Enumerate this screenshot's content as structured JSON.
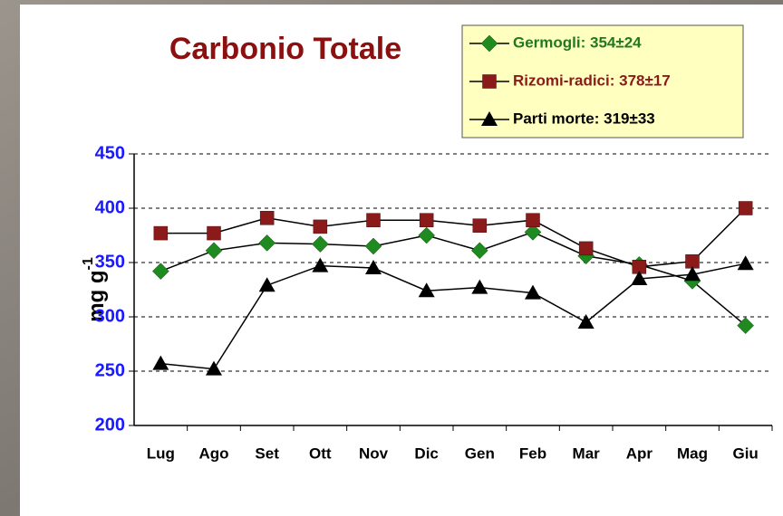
{
  "chart_data": {
    "type": "line",
    "title": "Carbonio Totale",
    "ylabel": "mg g",
    "ylabel_superscript": "-1",
    "categories": [
      "Lug",
      "Ago",
      "Set",
      "Ott",
      "Nov",
      "Dic",
      "Gen",
      "Feb",
      "Mar",
      "Apr",
      "Mag",
      "Giu"
    ],
    "series": [
      {
        "name": "Germogli: 354±24",
        "color": "#1f8a1f",
        "text_color": "#1f7a1f",
        "marker": "diamond",
        "values": [
          342,
          361,
          368,
          367,
          365,
          375,
          361,
          378,
          356,
          348,
          333,
          292
        ]
      },
      {
        "name": "Rizomi-radici: 378±17",
        "color": "#8b1a1a",
        "text_color": "#8b1a1a",
        "marker": "square",
        "values": [
          377,
          377,
          391,
          383,
          389,
          389,
          384,
          389,
          363,
          346,
          351,
          400
        ]
      },
      {
        "name": "Parti morte: 319±33",
        "color": "#000000",
        "text_color": "#000000",
        "marker": "triangle",
        "values": [
          257,
          252,
          329,
          347,
          345,
          324,
          327,
          322,
          295,
          335,
          339,
          349
        ]
      }
    ],
    "ylim": [
      200,
      450
    ],
    "yticks": [
      200,
      250,
      300,
      350,
      400,
      450
    ],
    "grid": true,
    "legend": "top-right"
  }
}
